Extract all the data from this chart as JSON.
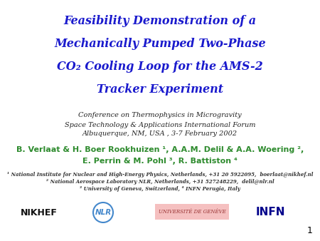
{
  "background_color": "#ffffff",
  "title_lines": [
    "Feasibility Demonstration of a",
    "Mechanically Pumped Two-Phase",
    "CO₂ Cooling Loop for the AMS-2",
    "Tracker Experiment"
  ],
  "title_color": "#1a1acd",
  "conference_lines": [
    "Conference on Thermophysics in Microgravity",
    "Space Technology & Applications International Forum",
    "Albuquerque, NM, USA , 3-7 February 2002"
  ],
  "conference_color": "#222222",
  "authors_line1": "B. Verlaat & H. Boer Rookhuizen ¹, A.A.M. Delil & A.A. Woering ²,",
  "authors_line2": "E. Perrin & M. Pohl ³, R. Battiston ⁴",
  "authors_color": "#2e8b2e",
  "affil1": "¹ National Institute for Nuclear and High-Energy Physics, Netherlands, +31 20 5922095,  boerlaat@nikhef.nl",
  "affil2": "² National Aerospace Laboratory NLR, Netherlands, +31 527248229,  delil@nlr.nl",
  "affil3": "³ University of Geneva, Switzerland, ⁴ INFN Perugia, Italy",
  "affil_color": "#333333",
  "email1": "boerlaat@nikhef.nl",
  "email2": "delil@nlr.nl",
  "email_color": "#4444ff",
  "page_number": "1"
}
